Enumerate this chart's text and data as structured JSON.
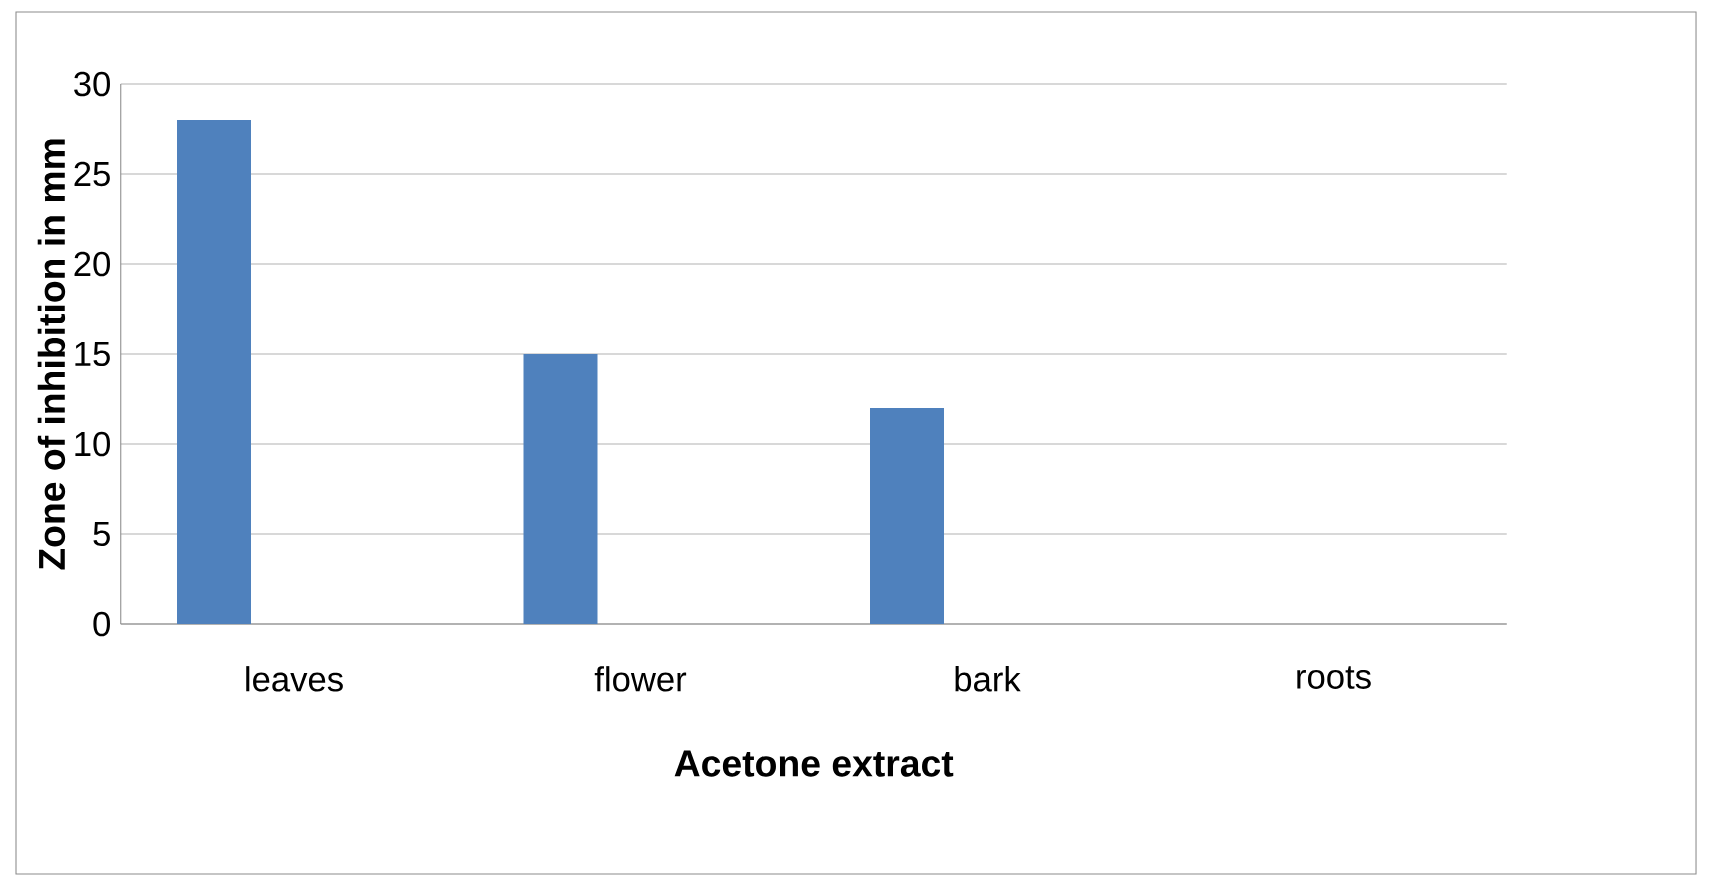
{
  "chart_data": {
    "type": "bar",
    "xlabel": "Acetone extract",
    "ylabel": "Zone of inhibition in mm",
    "categories": [
      "leaves",
      "flower",
      "bark",
      "roots"
    ],
    "values": [
      28,
      15,
      12,
      0
    ],
    "color": "#4f81bd",
    "ylim": [
      0,
      30
    ],
    "yticks": [
      0,
      5,
      10,
      15,
      20,
      25,
      30
    ],
    "grid": "y"
  }
}
